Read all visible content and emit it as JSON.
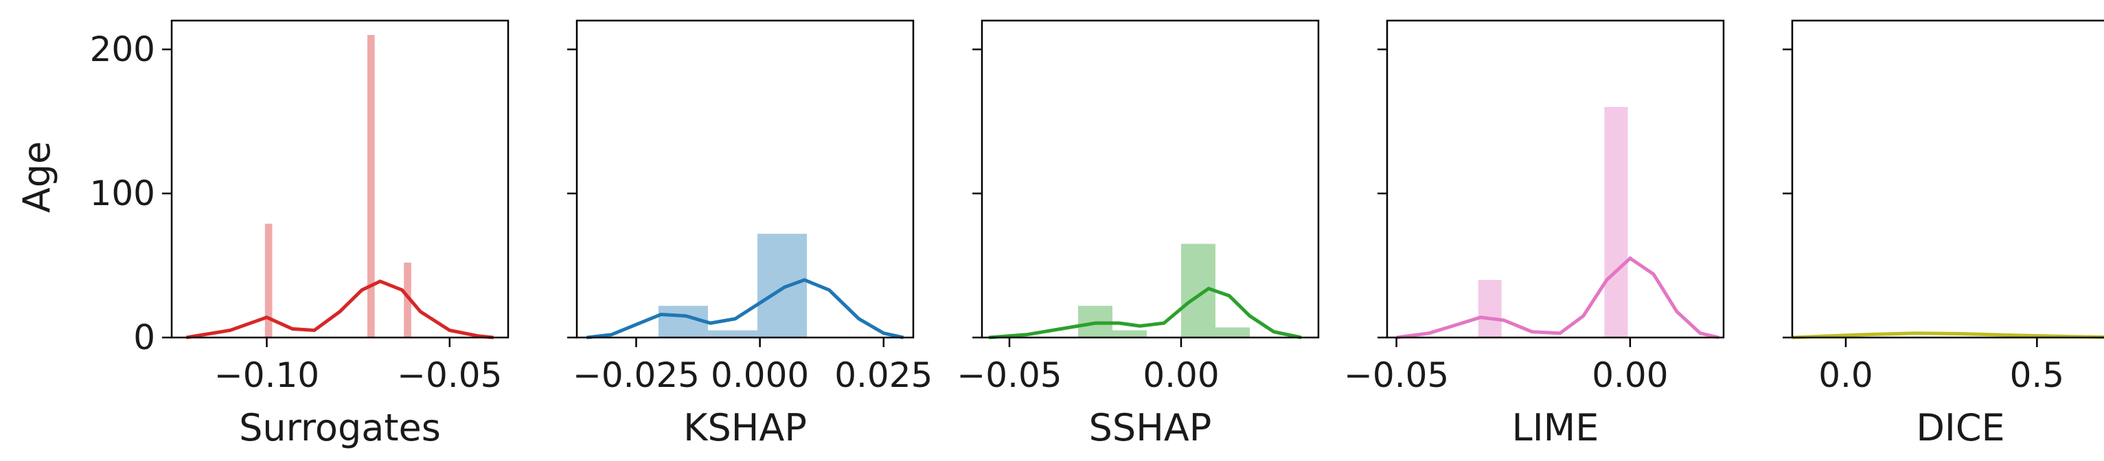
{
  "ylabel": "Age",
  "y_axis": {
    "ylim": [
      0,
      220
    ],
    "ticks": [
      0,
      100,
      200
    ]
  },
  "chart_data": [
    {
      "type": "bar",
      "subtype": "histogram-with-kde",
      "xlabel": "Surrogates",
      "color": "#d62728",
      "xlim": [
        -0.126,
        -0.034
      ],
      "xticks": [
        -0.1,
        -0.05
      ],
      "xtick_labels": [
        "−0.10",
        "−0.05"
      ],
      "bins": [
        {
          "x0": -0.1005,
          "x1": -0.0985,
          "count": 79
        },
        {
          "x0": -0.0725,
          "x1": -0.0705,
          "count": 210
        },
        {
          "x0": -0.0625,
          "x1": -0.0605,
          "count": 52
        }
      ],
      "kde": [
        [
          -0.122,
          0
        ],
        [
          -0.11,
          5
        ],
        [
          -0.1,
          14
        ],
        [
          -0.093,
          6
        ],
        [
          -0.087,
          5
        ],
        [
          -0.08,
          18
        ],
        [
          -0.074,
          33
        ],
        [
          -0.069,
          39
        ],
        [
          -0.063,
          33
        ],
        [
          -0.058,
          18
        ],
        [
          -0.05,
          5
        ],
        [
          -0.042,
          1
        ],
        [
          -0.038,
          0
        ]
      ]
    },
    {
      "type": "bar",
      "subtype": "histogram-with-kde",
      "xlabel": "KSHAP",
      "color": "#1f77b4",
      "xlim": [
        -0.037,
        0.031
      ],
      "xticks": [
        -0.025,
        0.0,
        0.025
      ],
      "xtick_labels": [
        "−0.025",
        "0.000",
        "0.025"
      ],
      "bins": [
        {
          "x0": -0.0205,
          "x1": -0.0105,
          "count": 22
        },
        {
          "x0": -0.0105,
          "x1": -0.0005,
          "count": 5
        },
        {
          "x0": -0.0005,
          "x1": 0.0095,
          "count": 72
        }
      ],
      "kde": [
        [
          -0.035,
          0
        ],
        [
          -0.03,
          2
        ],
        [
          -0.025,
          9
        ],
        [
          -0.02,
          16
        ],
        [
          -0.015,
          15
        ],
        [
          -0.01,
          10
        ],
        [
          -0.005,
          13
        ],
        [
          0.0,
          24
        ],
        [
          0.005,
          35
        ],
        [
          0.009,
          40
        ],
        [
          0.014,
          33
        ],
        [
          0.02,
          13
        ],
        [
          0.025,
          3
        ],
        [
          0.029,
          0
        ]
      ]
    },
    {
      "type": "bar",
      "subtype": "histogram-with-kde",
      "xlabel": "SSHAP",
      "color": "#2ca02c",
      "xlim": [
        -0.058,
        0.04
      ],
      "xticks": [
        -0.05,
        0.0
      ],
      "xtick_labels": [
        "−0.05",
        "0.00"
      ],
      "bins": [
        {
          "x0": -0.03,
          "x1": -0.02,
          "count": 22
        },
        {
          "x0": -0.02,
          "x1": -0.01,
          "count": 5
        },
        {
          "x0": 0.0,
          "x1": 0.01,
          "count": 65
        },
        {
          "x0": 0.01,
          "x1": 0.02,
          "count": 7
        }
      ],
      "kde": [
        [
          -0.056,
          0
        ],
        [
          -0.045,
          2
        ],
        [
          -0.035,
          6
        ],
        [
          -0.025,
          10
        ],
        [
          -0.018,
          10
        ],
        [
          -0.012,
          8
        ],
        [
          -0.005,
          10
        ],
        [
          0.002,
          24
        ],
        [
          0.008,
          34
        ],
        [
          0.014,
          29
        ],
        [
          0.02,
          15
        ],
        [
          0.027,
          4
        ],
        [
          0.035,
          0
        ]
      ]
    },
    {
      "type": "bar",
      "subtype": "histogram-with-kde",
      "xlabel": "LIME",
      "color": "#e377c2",
      "xlim": [
        -0.052,
        0.02
      ],
      "xticks": [
        -0.05,
        0.0
      ],
      "xtick_labels": [
        "−0.05",
        "0.00"
      ],
      "bins": [
        {
          "x0": -0.0325,
          "x1": -0.0275,
          "count": 40
        },
        {
          "x0": -0.0055,
          "x1": -0.0005,
          "count": 160
        }
      ],
      "kde": [
        [
          -0.05,
          0
        ],
        [
          -0.043,
          3
        ],
        [
          -0.037,
          9
        ],
        [
          -0.032,
          14
        ],
        [
          -0.027,
          12
        ],
        [
          -0.021,
          4
        ],
        [
          -0.015,
          3
        ],
        [
          -0.01,
          15
        ],
        [
          -0.005,
          40
        ],
        [
          0.0,
          55
        ],
        [
          0.005,
          44
        ],
        [
          0.01,
          18
        ],
        [
          0.015,
          3
        ],
        [
          0.019,
          0
        ]
      ]
    },
    {
      "type": "bar",
      "subtype": "histogram-with-kde",
      "xlabel": "DICE",
      "color": "#bcbd22",
      "xlim": [
        -0.14,
        0.74
      ],
      "xticks": [
        0.0,
        0.5
      ],
      "xtick_labels": [
        "0.0",
        "0.5"
      ],
      "bins": [],
      "kde": [
        [
          -0.14,
          0
        ],
        [
          -0.05,
          1
        ],
        [
          0.05,
          2
        ],
        [
          0.18,
          3
        ],
        [
          0.3,
          2.6
        ],
        [
          0.45,
          1.5
        ],
        [
          0.6,
          0.6
        ],
        [
          0.74,
          0
        ]
      ]
    }
  ]
}
